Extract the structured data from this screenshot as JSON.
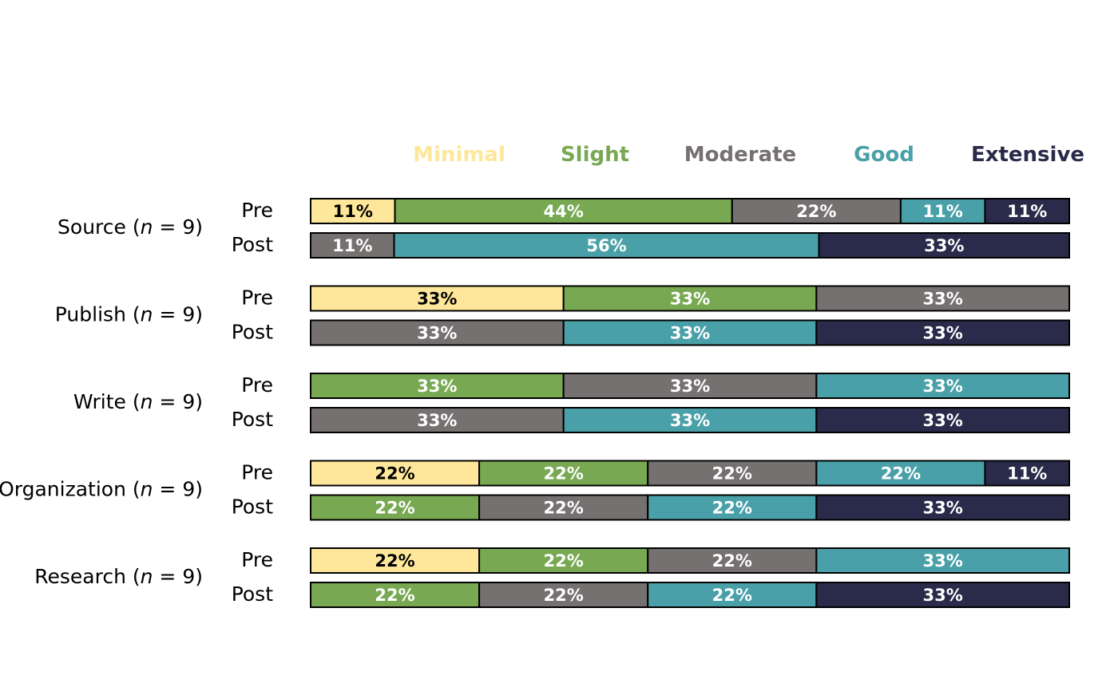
{
  "chart_data": {
    "type": "bar",
    "orientation": "horizontal-stacked-100",
    "legend_position": "top",
    "levels": [
      {
        "name": "Minimal",
        "color": "#FEE79A",
        "text_color": "#000000"
      },
      {
        "name": "Slight",
        "color": "#78A952",
        "text_color": "#FFFFFF"
      },
      {
        "name": "Moderate",
        "color": "#767171",
        "text_color": "#FFFFFF"
      },
      {
        "name": "Good",
        "color": "#4AA0A8",
        "text_color": "#FFFFFF"
      },
      {
        "name": "Extensive",
        "color": "#2A2A4A",
        "text_color": "#FFFFFF"
      }
    ],
    "groups": [
      {
        "name": "Source",
        "n": "9",
        "rows": [
          {
            "label": "Pre",
            "values": [
              11,
              44,
              22,
              11,
              11
            ]
          },
          {
            "label": "Post",
            "values": [
              0,
              0,
              11,
              56,
              33
            ]
          }
        ]
      },
      {
        "name": "Publish",
        "n": "9",
        "rows": [
          {
            "label": "Pre",
            "values": [
              33,
              33,
              33,
              0,
              0
            ]
          },
          {
            "label": "Post",
            "values": [
              0,
              0,
              33,
              33,
              33
            ]
          }
        ]
      },
      {
        "name": "Write",
        "n": "9",
        "rows": [
          {
            "label": "Pre",
            "values": [
              0,
              33,
              33,
              33,
              0
            ]
          },
          {
            "label": "Post",
            "values": [
              0,
              0,
              33,
              33,
              33
            ]
          }
        ]
      },
      {
        "name": "Organization",
        "n": "9",
        "rows": [
          {
            "label": "Pre",
            "values": [
              22,
              22,
              22,
              22,
              11
            ]
          },
          {
            "label": "Post",
            "values": [
              0,
              22,
              22,
              22,
              33
            ]
          }
        ]
      },
      {
        "name": "Research",
        "n": "9",
        "rows": [
          {
            "label": "Pre",
            "values": [
              22,
              22,
              22,
              33,
              0
            ]
          },
          {
            "label": "Post",
            "values": [
              0,
              22,
              22,
              22,
              33
            ]
          }
        ]
      }
    ]
  }
}
